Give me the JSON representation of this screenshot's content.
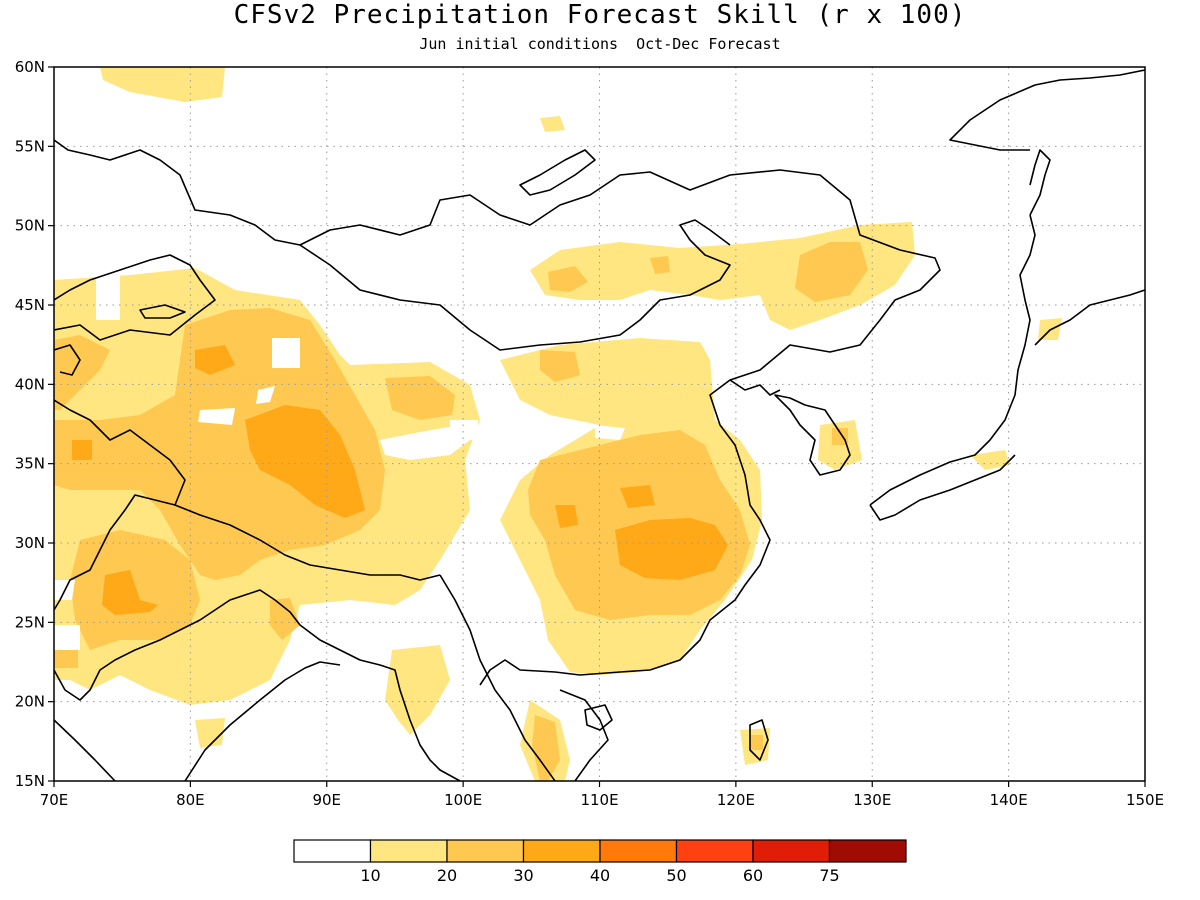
{
  "title": "CFSv2 Precipitation Forecast Skill (r x 100)",
  "subtitle": "Jun initial conditions  Oct-Dec Forecast",
  "map": {
    "lon_range": [
      70,
      150
    ],
    "lat_range": [
      15,
      60
    ],
    "x_ticks": [
      "70E",
      "80E",
      "90E",
      "100E",
      "110E",
      "120E",
      "130E",
      "140E",
      "150E"
    ],
    "y_ticks": [
      "15N",
      "20N",
      "25N",
      "30N",
      "35N",
      "40N",
      "45N",
      "50N",
      "55N",
      "60N"
    ],
    "grid": "dotted",
    "coastlines": true
  },
  "colorbar": {
    "bins": [
      {
        "color": "#ffffff"
      },
      {
        "color": "#ffe680"
      },
      {
        "color": "#ffc850"
      },
      {
        "color": "#ffa818"
      },
      {
        "color": "#ff7a0a"
      },
      {
        "color": "#ff4010"
      },
      {
        "color": "#e01e08"
      },
      {
        "color": "#a00c04"
      }
    ],
    "labels": [
      "10",
      "20",
      "30",
      "40",
      "50",
      "60",
      "75"
    ]
  }
}
